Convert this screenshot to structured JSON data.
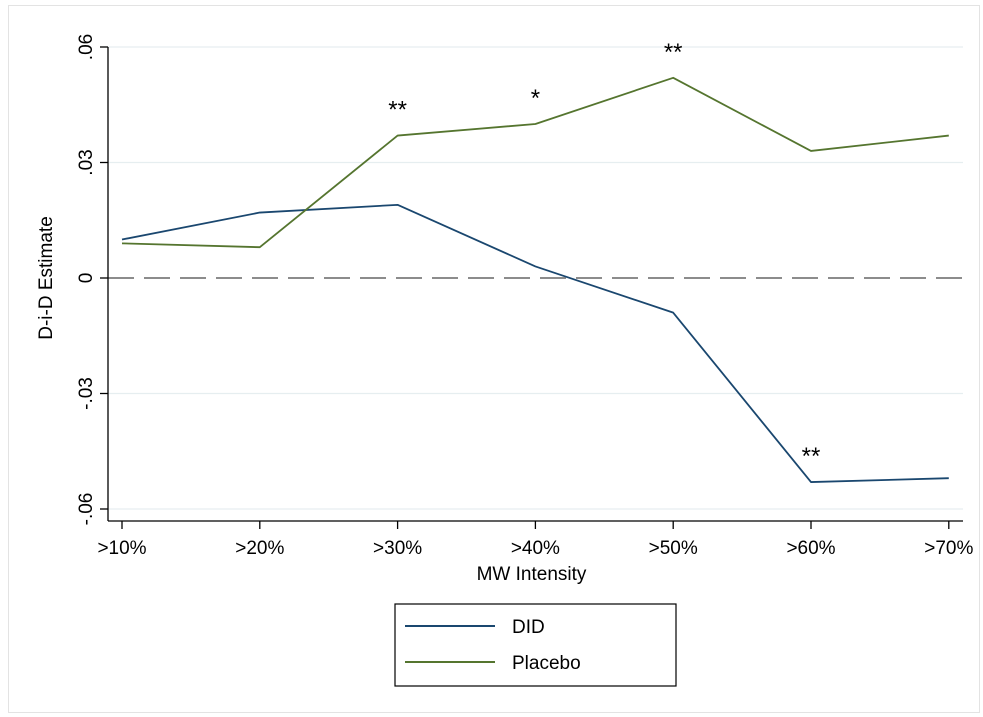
{
  "chart_data": {
    "type": "line",
    "categories": [
      ">10%",
      ">20%",
      ">30%",
      ">40%",
      ">50%",
      ">60%",
      ">70%"
    ],
    "series": [
      {
        "name": "DID",
        "color": "#1a476f",
        "values": [
          0.01,
          0.017,
          0.019,
          0.003,
          -0.009,
          -0.053,
          -0.052
        ]
      },
      {
        "name": "Placebo",
        "color": "#55752f",
        "values": [
          0.009,
          0.008,
          0.037,
          0.04,
          0.052,
          0.033,
          0.037
        ]
      }
    ],
    "annotations": [
      {
        "series": "Placebo",
        "category": ">30%",
        "text": "**"
      },
      {
        "series": "Placebo",
        "category": ">40%",
        "text": "*"
      },
      {
        "series": "Placebo",
        "category": ">50%",
        "text": "**"
      },
      {
        "series": "DID",
        "category": ">60%",
        "text": "**"
      }
    ],
    "xlabel": "MW Intensity",
    "ylabel": "D-i-D Estimate",
    "ylim": [
      -0.06,
      0.06
    ],
    "yticks": [
      -0.06,
      -0.03,
      0,
      0.03,
      0.06
    ],
    "ytick_labels": [
      "-.06",
      "-.03",
      "0",
      ".03",
      ".06"
    ],
    "reference_line": {
      "y": 0,
      "style": "dashed",
      "color": "#8c8c8c"
    },
    "grid": true,
    "legend_placement": "bottom-center"
  }
}
